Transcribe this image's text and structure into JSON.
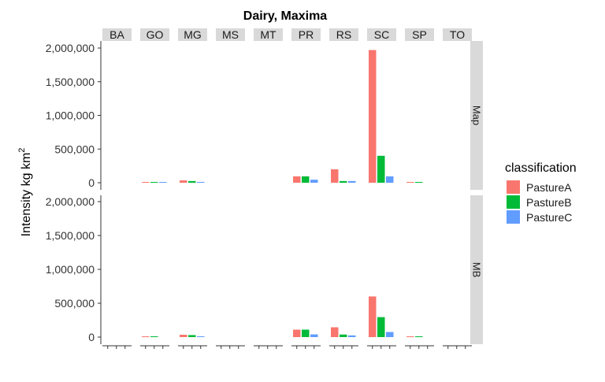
{
  "chart_data": {
    "type": "bar",
    "title": "Dairy, Maxima",
    "ylabel": "Intensity kg km",
    "ylabel_superscript": "2",
    "xlabel": "",
    "column_facets": [
      "BA",
      "GO",
      "MG",
      "MS",
      "MT",
      "PR",
      "RS",
      "SC",
      "SP",
      "TO"
    ],
    "row_facets": [
      "Map",
      "MB"
    ],
    "categories": [
      "PastureA",
      "PastureB",
      "PastureC"
    ],
    "ylim": [
      0,
      2100000
    ],
    "y_ticks": [
      0,
      500000,
      1000000,
      1500000,
      2000000
    ],
    "y_tick_labels": [
      "0",
      "500,000",
      "1,000,000",
      "1,500,000",
      "2,000,000"
    ],
    "grid": false,
    "legend": {
      "title": "classification",
      "position": "right",
      "entries": [
        {
          "name": "PastureA",
          "color": "#F8766D"
        },
        {
          "name": "PastureB",
          "color": "#00BA38"
        },
        {
          "name": "PastureC",
          "color": "#619CFF"
        }
      ]
    },
    "values": {
      "Map": {
        "BA": [
          0,
          0,
          0
        ],
        "GO": [
          8000,
          7000,
          6000
        ],
        "MG": [
          35000,
          25000,
          12000
        ],
        "MS": [
          0,
          0,
          0
        ],
        "MT": [
          0,
          0,
          0
        ],
        "PR": [
          95000,
          95000,
          45000
        ],
        "RS": [
          200000,
          25000,
          25000
        ],
        "SC": [
          1970000,
          400000,
          95000
        ],
        "SP": [
          8000,
          8000,
          0
        ],
        "TO": [
          0,
          0,
          0
        ]
      },
      "MB": {
        "BA": [
          0,
          0,
          0
        ],
        "GO": [
          8000,
          8000,
          0
        ],
        "MG": [
          35000,
          30000,
          12000
        ],
        "MS": [
          0,
          0,
          0
        ],
        "MT": [
          0,
          0,
          0
        ],
        "PR": [
          110000,
          110000,
          40000
        ],
        "RS": [
          145000,
          38000,
          25000
        ],
        "SC": [
          600000,
          295000,
          75000
        ],
        "SP": [
          8000,
          8000,
          0
        ],
        "TO": [
          0,
          0,
          0
        ]
      }
    }
  }
}
